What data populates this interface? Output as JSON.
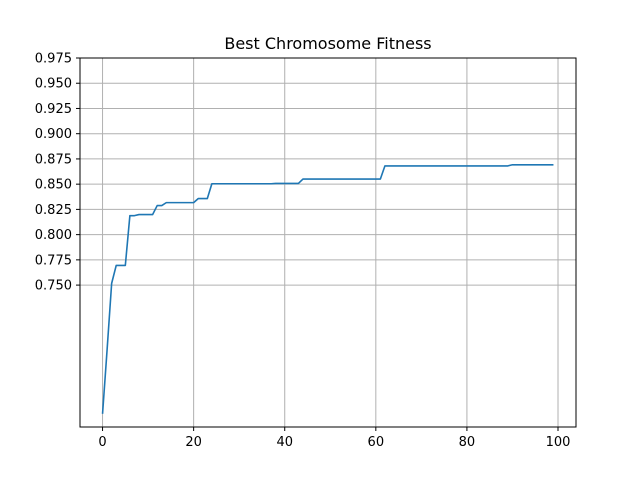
{
  "chart_data": {
    "type": "line",
    "title": "Best Chromosome Fitness",
    "xlabel": "",
    "ylabel": "",
    "xlim": [
      -4.95,
      103.95
    ],
    "ylim": [
      0.6094,
      0.975
    ],
    "grid": true,
    "x_ticks": [
      0,
      20,
      40,
      60,
      80,
      100
    ],
    "x_tick_labels": [
      "0",
      "20",
      "40",
      "60",
      "80",
      "100"
    ],
    "y_ticks": [
      0.75,
      0.775,
      0.8,
      0.825,
      0.85,
      0.875,
      0.9,
      0.925,
      0.95,
      0.975
    ],
    "y_tick_labels": [
      "0.750",
      "0.775",
      "0.800",
      "0.825",
      "0.850",
      "0.875",
      "0.900",
      "0.925",
      "0.950",
      "0.975"
    ],
    "series": [
      {
        "color": "#1f77b4",
        "x": [
          0,
          1,
          2,
          3,
          4,
          5,
          6,
          7,
          8,
          9,
          10,
          11,
          12,
          13,
          14,
          15,
          16,
          17,
          18,
          19,
          20,
          21,
          22,
          23,
          24,
          25,
          26,
          27,
          28,
          29,
          30,
          31,
          32,
          33,
          34,
          35,
          36,
          37,
          38,
          39,
          40,
          41,
          42,
          43,
          44,
          45,
          46,
          47,
          48,
          49,
          50,
          51,
          52,
          53,
          54,
          55,
          56,
          57,
          58,
          59,
          60,
          61,
          62,
          63,
          64,
          65,
          66,
          67,
          68,
          69,
          70,
          71,
          72,
          73,
          74,
          75,
          76,
          77,
          78,
          79,
          80,
          81,
          82,
          83,
          84,
          85,
          86,
          87,
          88,
          89,
          90,
          91,
          92,
          93,
          94,
          95,
          96,
          97,
          98,
          99
        ],
        "y": [
          0.6225,
          0.686,
          0.7517,
          0.7695,
          0.7695,
          0.7695,
          0.8188,
          0.8188,
          0.8199,
          0.8199,
          0.8199,
          0.8199,
          0.8288,
          0.8288,
          0.8317,
          0.8317,
          0.8317,
          0.8317,
          0.8317,
          0.8317,
          0.8317,
          0.8357,
          0.8357,
          0.8357,
          0.8504,
          0.8504,
          0.8504,
          0.8504,
          0.8504,
          0.8504,
          0.8504,
          0.8504,
          0.8504,
          0.8504,
          0.8504,
          0.8504,
          0.8504,
          0.8504,
          0.8507,
          0.8507,
          0.8507,
          0.8507,
          0.8507,
          0.8507,
          0.8551,
          0.8551,
          0.8551,
          0.8551,
          0.8551,
          0.8551,
          0.8551,
          0.8551,
          0.8551,
          0.8551,
          0.8551,
          0.8551,
          0.8551,
          0.8551,
          0.8551,
          0.8551,
          0.8551,
          0.8551,
          0.8681,
          0.8681,
          0.8681,
          0.8681,
          0.8681,
          0.8681,
          0.8681,
          0.8681,
          0.8681,
          0.8681,
          0.8681,
          0.8681,
          0.8681,
          0.8681,
          0.8681,
          0.8681,
          0.8681,
          0.8681,
          0.8681,
          0.8681,
          0.8681,
          0.8681,
          0.8681,
          0.8681,
          0.8681,
          0.8681,
          0.8681,
          0.8681,
          0.8692,
          0.8692,
          0.8692,
          0.8692,
          0.8692,
          0.8692,
          0.8692,
          0.8692,
          0.8692,
          0.8692
        ]
      }
    ]
  }
}
